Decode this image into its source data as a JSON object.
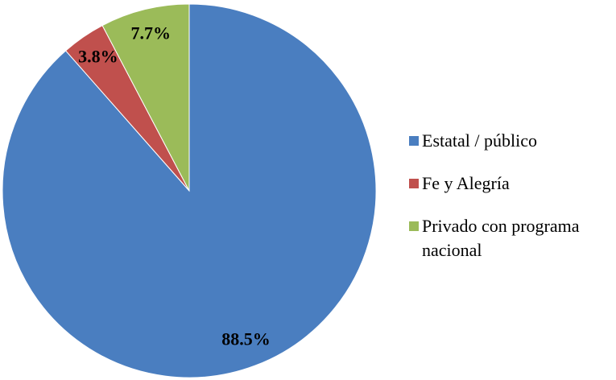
{
  "chart_data": {
    "type": "pie",
    "categories": [
      "Estatal / público",
      "Fe y Alegría",
      "Privado con programa nacional"
    ],
    "values": [
      88.5,
      3.8,
      7.7
    ],
    "value_labels": [
      "88.5%",
      "3.8%",
      "7.7%"
    ],
    "colors": [
      "#4a7ec0",
      "#c0504d",
      "#9bbb59"
    ],
    "legend": "right"
  }
}
